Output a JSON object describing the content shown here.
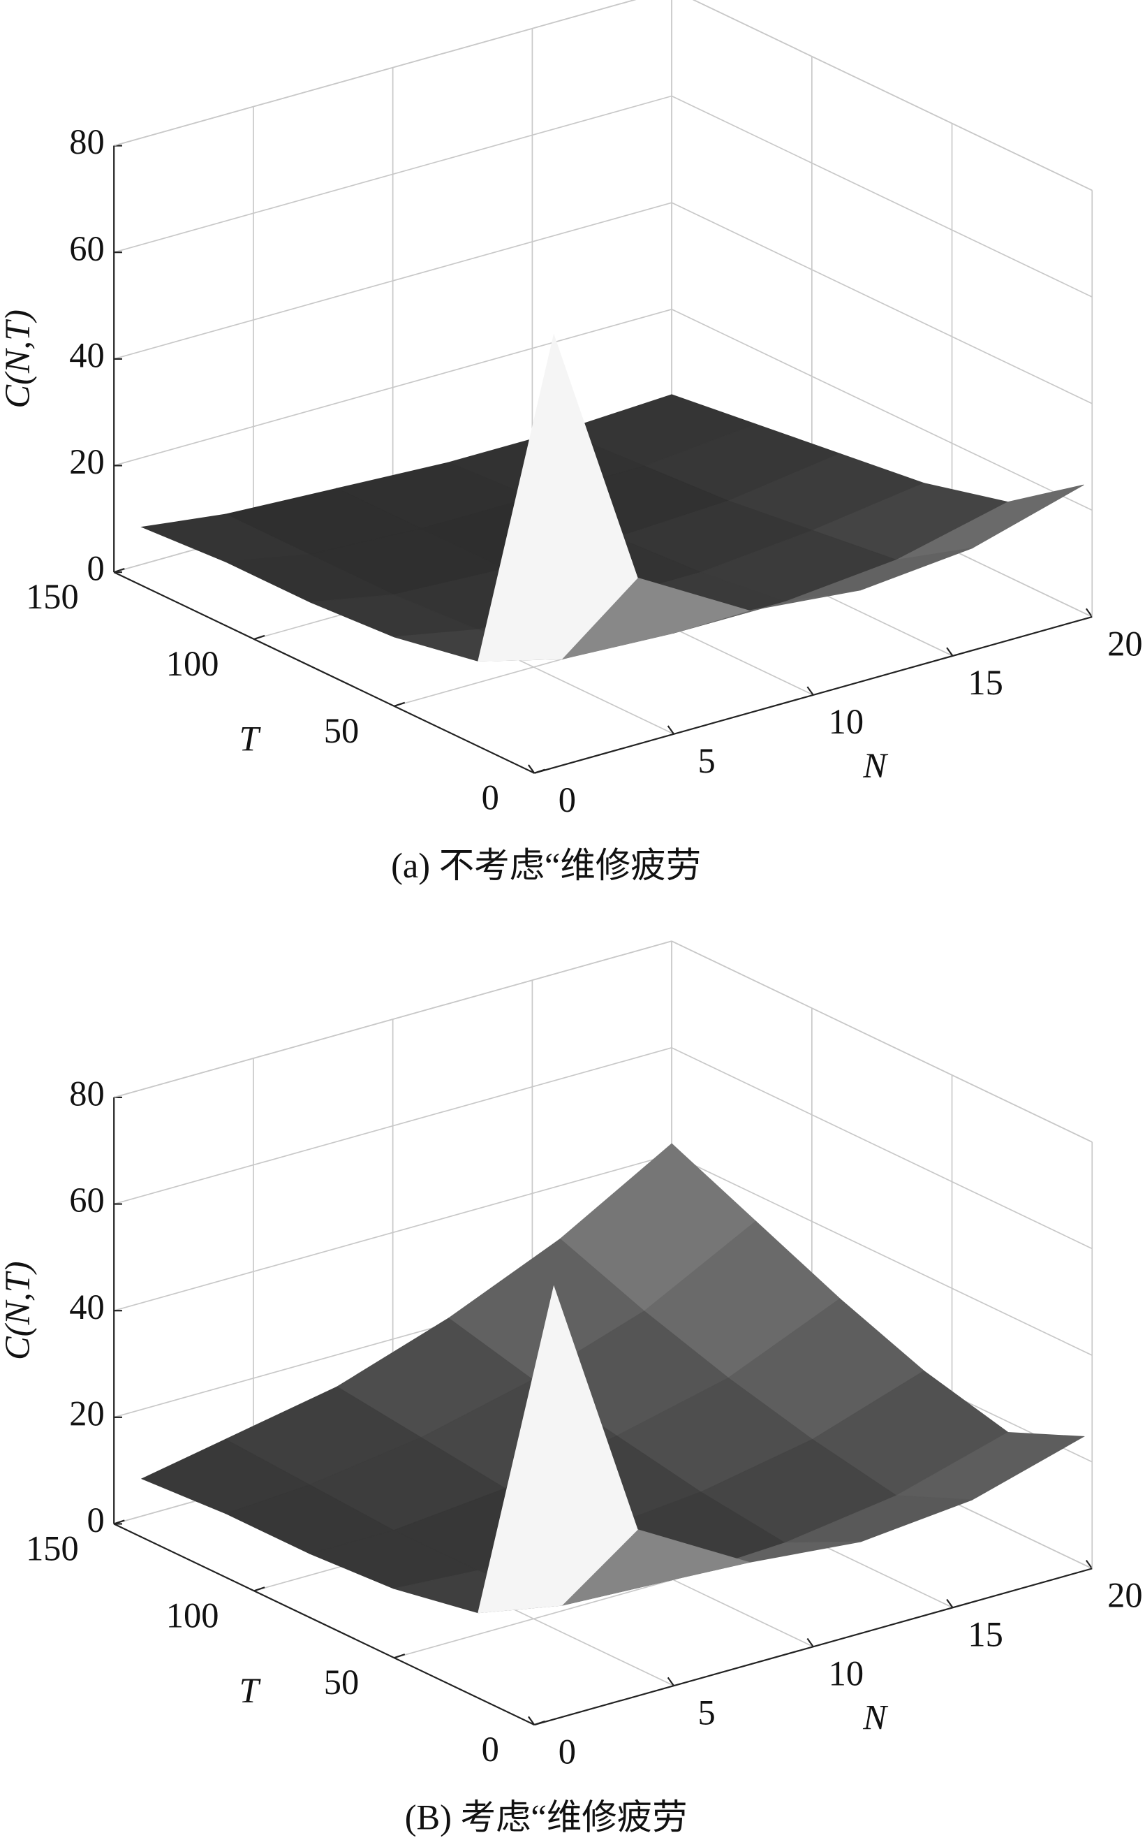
{
  "chart_data": [
    {
      "type": "surface",
      "xlabel": "N",
      "ylabel": "T",
      "zlabel": "C(N,T)",
      "caption": "(a) 不考虑“维修疲劳",
      "colormap": "gray",
      "grid": true,
      "x": [
        1,
        4,
        8,
        12,
        16,
        20
      ],
      "y": [
        3,
        30,
        60,
        90,
        120,
        150
      ],
      "z": [
        [
          80,
          30,
          18,
          16,
          18,
          24
        ],
        [
          12,
          8,
          7,
          7,
          9,
          14
        ],
        [
          9,
          6,
          5,
          5,
          7,
          10
        ],
        [
          8,
          5,
          4,
          4,
          5,
          8
        ],
        [
          8,
          5,
          4,
          4,
          4,
          6
        ],
        [
          7,
          5,
          4,
          3,
          3,
          4
        ]
      ],
      "xlim": [
        0,
        20
      ],
      "ylim": [
        0,
        150
      ],
      "zlim": [
        0,
        80
      ],
      "xticks": [
        0,
        5,
        10,
        15,
        20
      ],
      "yticks": [
        0,
        50,
        100,
        150
      ],
      "zticks": [
        0,
        20,
        40,
        60,
        80
      ]
    },
    {
      "type": "surface",
      "xlabel": "N",
      "ylabel": "T",
      "zlabel": "C(N,T)",
      "caption": "(B) 考虑“维修疲劳",
      "colormap": "gray",
      "grid": true,
      "x": [
        1,
        4,
        8,
        12,
        16,
        20
      ],
      "y": [
        3,
        30,
        60,
        90,
        120,
        150
      ],
      "z": [
        [
          80,
          30,
          18,
          16,
          18,
          24
        ],
        [
          12,
          9,
          8,
          9,
          12,
          18
        ],
        [
          9,
          8,
          9,
          11,
          15,
          22
        ],
        [
          8,
          8,
          10,
          14,
          19,
          28
        ],
        [
          8,
          9,
          12,
          17,
          24,
          35
        ],
        [
          7,
          10,
          14,
          21,
          30,
          42
        ]
      ],
      "xlim": [
        0,
        20
      ],
      "ylim": [
        0,
        150
      ],
      "zlim": [
        0,
        80
      ],
      "xticks": [
        0,
        5,
        10,
        15,
        20
      ],
      "yticks": [
        0,
        50,
        100,
        150
      ],
      "zticks": [
        0,
        20,
        40,
        60,
        80
      ]
    }
  ]
}
